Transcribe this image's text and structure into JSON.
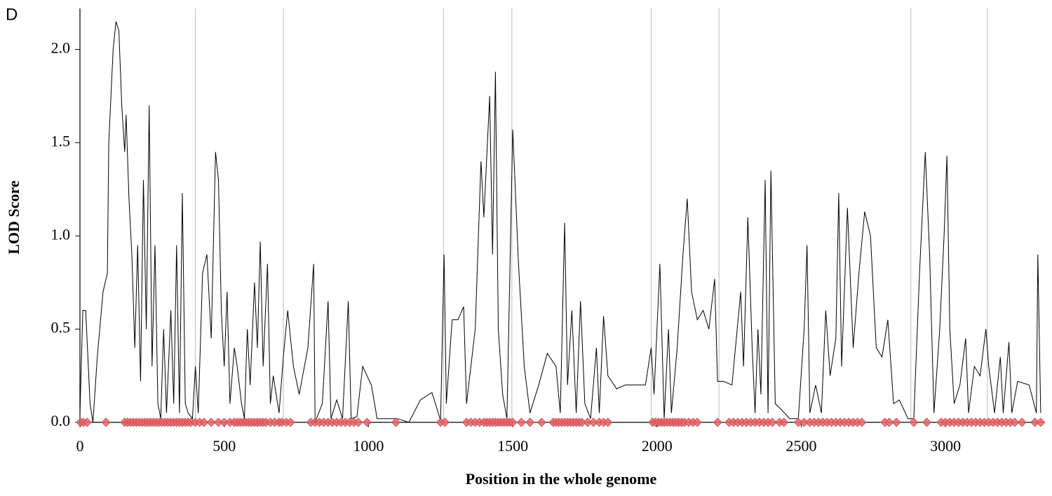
{
  "chart_data": {
    "type": "line",
    "annotation": "D",
    "xlabel": "Position in the whole genome",
    "ylabel": "LOD Score",
    "xlim": [
      0,
      3340
    ],
    "ylim": [
      0,
      2.22
    ],
    "xticks": [
      0,
      500,
      1000,
      1500,
      2000,
      2500,
      3000
    ],
    "yticks": [
      {
        "value": 0,
        "label": "0.0"
      },
      {
        "value": 0.5,
        "label": "0.5"
      },
      {
        "value": 1,
        "label": "1.0"
      },
      {
        "value": 1.5,
        "label": "1.5"
      },
      {
        "value": 2,
        "label": "2.0"
      }
    ],
    "separators": [
      400,
      705,
      1260,
      1497,
      1980,
      2215,
      2880,
      3145
    ],
    "marker_color": "#e8666a",
    "markers": [
      2,
      12,
      25,
      90,
      155,
      165,
      175,
      185,
      195,
      205,
      215,
      225,
      235,
      245,
      255,
      265,
      275,
      285,
      295,
      305,
      315,
      325,
      335,
      345,
      355,
      365,
      375,
      385,
      400,
      415,
      430,
      455,
      480,
      500,
      520,
      535,
      545,
      555,
      565,
      575,
      585,
      595,
      605,
      615,
      625,
      635,
      645,
      660,
      675,
      690,
      700,
      715,
      730,
      800,
      815,
      830,
      845,
      860,
      875,
      890,
      905,
      920,
      935,
      950,
      965,
      995,
      1095,
      1250,
      1265,
      1340,
      1355,
      1370,
      1385,
      1400,
      1410,
      1420,
      1430,
      1440,
      1450,
      1460,
      1470,
      1480,
      1490,
      1500,
      1530,
      1560,
      1600,
      1640,
      1650,
      1660,
      1670,
      1680,
      1690,
      1700,
      1710,
      1720,
      1730,
      1740,
      1760,
      1780,
      1800,
      1815,
      1830,
      1985,
      1995,
      2005,
      2015,
      2025,
      2035,
      2045,
      2055,
      2065,
      2075,
      2085,
      2095,
      2110,
      2125,
      2140,
      2210,
      2250,
      2265,
      2280,
      2295,
      2310,
      2325,
      2340,
      2355,
      2370,
      2385,
      2400,
      2425,
      2440,
      2490,
      2510,
      2530,
      2545,
      2560,
      2575,
      2590,
      2605,
      2620,
      2635,
      2650,
      2665,
      2680,
      2695,
      2710,
      2790,
      2805,
      2830,
      2890,
      2935,
      2985,
      3000,
      3015,
      3030,
      3045,
      3060,
      3075,
      3090,
      3105,
      3120,
      3135,
      3150,
      3165,
      3180,
      3195,
      3210,
      3225,
      3240,
      3265,
      3310,
      3330
    ],
    "series": [
      {
        "color": "#000000",
        "x": [
          0,
          10,
          20,
          35,
          45,
          60,
          80,
          95,
          100,
          115,
          125,
          135,
          145,
          155,
          160,
          170,
          180,
          190,
          200,
          210,
          220,
          230,
          240,
          250,
          260,
          270,
          280,
          290,
          300,
          315,
          325,
          335,
          345,
          355,
          365,
          375,
          390,
          400,
          410,
          425,
          440,
          455,
          470,
          480,
          490,
          500,
          510,
          520,
          535,
          545,
          560,
          570,
          580,
          590,
          605,
          615,
          625,
          635,
          650,
          660,
          670,
          690,
          705,
          720,
          740,
          760,
          790,
          810,
          815,
          840,
          860,
          870,
          890,
          910,
          930,
          940,
          960,
          980,
          1010,
          1030,
          1100,
          1140,
          1180,
          1220,
          1250,
          1262,
          1270,
          1290,
          1310,
          1330,
          1340,
          1370,
          1390,
          1400,
          1420,
          1430,
          1440,
          1450,
          1465,
          1480,
          1500,
          1520,
          1540,
          1560,
          1590,
          1620,
          1650,
          1665,
          1680,
          1690,
          1705,
          1720,
          1735,
          1750,
          1770,
          1790,
          1800,
          1815,
          1830,
          1860,
          1890,
          1920,
          1960,
          1980,
          1990,
          2010,
          2025,
          2040,
          2050,
          2070,
          2090,
          2105,
          2120,
          2140,
          2160,
          2180,
          2200,
          2210,
          2230,
          2260,
          2290,
          2300,
          2315,
          2330,
          2340,
          2350,
          2360,
          2375,
          2385,
          2395,
          2410,
          2430,
          2460,
          2490,
          2510,
          2520,
          2530,
          2550,
          2570,
          2585,
          2600,
          2620,
          2630,
          2640,
          2660,
          2680,
          2700,
          2720,
          2740,
          2760,
          2780,
          2800,
          2820,
          2840,
          2870,
          2890,
          2910,
          2930,
          2945,
          2960,
          2980,
          2995,
          3005,
          3015,
          3030,
          3050,
          3070,
          3080,
          3100,
          3120,
          3140,
          3150,
          3170,
          3190,
          3200,
          3220,
          3230,
          3250,
          3290,
          3315,
          3320,
          3330
        ],
        "values": [
          0.05,
          0.6,
          0.6,
          0.1,
          0.0,
          0.35,
          0.7,
          0.8,
          1.5,
          2.0,
          2.15,
          2.1,
          1.7,
          1.45,
          1.65,
          1.2,
          0.9,
          0.4,
          0.95,
          0.22,
          1.3,
          0.5,
          1.7,
          0.3,
          0.95,
          0.1,
          0.02,
          0.5,
          0.05,
          0.6,
          0.1,
          0.95,
          0.05,
          1.23,
          0.1,
          0.05,
          0.02,
          0.3,
          0.05,
          0.8,
          0.9,
          0.45,
          1.45,
          1.3,
          0.6,
          0.3,
          0.7,
          0.1,
          0.4,
          0.3,
          0.1,
          0.02,
          0.5,
          0.2,
          0.75,
          0.4,
          0.97,
          0.3,
          0.85,
          0.1,
          0.25,
          0.05,
          0.35,
          0.6,
          0.3,
          0.15,
          0.4,
          0.85,
          0.0,
          0.1,
          0.65,
          0.02,
          0.12,
          0.02,
          0.65,
          0.02,
          0.03,
          0.3,
          0.2,
          0.02,
          0.02,
          0.0,
          0.12,
          0.16,
          0.01,
          0.9,
          0.1,
          0.55,
          0.55,
          0.62,
          0.1,
          0.5,
          1.4,
          1.1,
          1.75,
          0.9,
          1.88,
          0.5,
          0.15,
          0.02,
          1.57,
          0.85,
          0.3,
          0.05,
          0.2,
          0.37,
          0.3,
          0.05,
          1.07,
          0.2,
          0.6,
          0.05,
          0.65,
          0.1,
          0.02,
          0.4,
          0.05,
          0.57,
          0.25,
          0.18,
          0.2,
          0.2,
          0.2,
          0.4,
          0.15,
          0.85,
          0.02,
          0.5,
          0.05,
          0.4,
          0.9,
          1.2,
          0.7,
          0.55,
          0.6,
          0.5,
          0.77,
          0.22,
          0.22,
          0.2,
          0.7,
          0.3,
          1.1,
          0.4,
          0.05,
          0.5,
          0.15,
          1.3,
          0.05,
          1.35,
          0.1,
          0.07,
          0.02,
          0.02,
          0.5,
          0.95,
          0.05,
          0.2,
          0.05,
          0.6,
          0.25,
          0.45,
          1.23,
          0.3,
          1.15,
          0.4,
          0.8,
          1.13,
          1.0,
          0.4,
          0.35,
          0.55,
          0.1,
          0.12,
          0.02,
          0.02,
          0.8,
          1.45,
          0.9,
          0.05,
          0.5,
          1.0,
          1.43,
          0.5,
          0.1,
          0.2,
          0.45,
          0.05,
          0.3,
          0.25,
          0.5,
          0.3,
          0.05,
          0.35,
          0.05,
          0.43,
          0.05,
          0.22,
          0.2,
          0.05,
          0.9,
          0.05
        ]
      }
    ]
  }
}
